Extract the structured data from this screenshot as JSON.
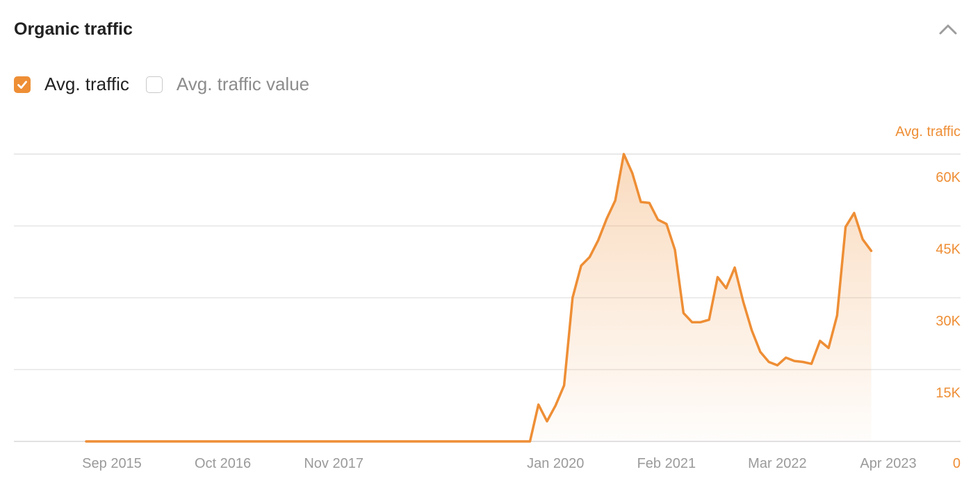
{
  "panel": {
    "title": "Organic traffic",
    "collapse_icon": "chevron-up-icon"
  },
  "legend": [
    {
      "label": "Avg. traffic",
      "checked": true,
      "color": "#ee8e35"
    },
    {
      "label": "Avg. traffic value",
      "checked": false,
      "color": "#c9c9c9"
    }
  ],
  "chart_data": {
    "type": "area",
    "series": [
      {
        "name": "Avg. traffic",
        "color": "#ee8e35",
        "points": [
          [
            "2015-06",
            0
          ],
          [
            "2016-06",
            0
          ],
          [
            "2017-06",
            0
          ],
          [
            "2018-06",
            0
          ],
          [
            "2019-06",
            0
          ],
          [
            "2019-10",
            0
          ],
          [
            "2019-11",
            7700
          ],
          [
            "2019-12",
            4200
          ],
          [
            "2020-01",
            7500
          ],
          [
            "2020-02",
            11700
          ],
          [
            "2020-03",
            30000
          ],
          [
            "2020-04",
            36700
          ],
          [
            "2020-05",
            38500
          ],
          [
            "2020-06",
            42000
          ],
          [
            "2020-07",
            46500
          ],
          [
            "2020-08",
            50300
          ],
          [
            "2020-09",
            60000
          ],
          [
            "2020-10",
            56000
          ],
          [
            "2020-11",
            50000
          ],
          [
            "2020-12",
            49800
          ],
          [
            "2021-01",
            46300
          ],
          [
            "2021-02",
            45400
          ],
          [
            "2021-03",
            40000
          ],
          [
            "2021-04",
            26800
          ],
          [
            "2021-05",
            24900
          ],
          [
            "2021-06",
            24900
          ],
          [
            "2021-07",
            25400
          ],
          [
            "2021-08",
            34300
          ],
          [
            "2021-09",
            32000
          ],
          [
            "2021-10",
            36300
          ],
          [
            "2021-11",
            29200
          ],
          [
            "2021-12",
            23200
          ],
          [
            "2022-01",
            18700
          ],
          [
            "2022-02",
            16600
          ],
          [
            "2022-03",
            15900
          ],
          [
            "2022-04",
            17500
          ],
          [
            "2022-05",
            16800
          ],
          [
            "2022-06",
            16600
          ],
          [
            "2022-07",
            16200
          ],
          [
            "2022-08",
            21000
          ],
          [
            "2022-09",
            19500
          ],
          [
            "2022-10",
            26300
          ],
          [
            "2022-11",
            44800
          ],
          [
            "2022-12",
            47700
          ],
          [
            "2023-01",
            42200
          ],
          [
            "2023-02",
            39800
          ]
        ]
      }
    ],
    "x_ticks": [
      "Sep 2015",
      "Oct 2016",
      "Nov 2017",
      "Jan 2020",
      "Feb 2021",
      "Mar 2022",
      "Apr 2023"
    ],
    "y_ticks": [
      "0",
      "15K",
      "30K",
      "45K",
      "60K"
    ],
    "y_values": [
      0,
      15000,
      30000,
      45000,
      60000
    ],
    "ylabel": "Avg. traffic",
    "ylim": [
      0,
      60000
    ],
    "grid": true,
    "y_axis_side": "right",
    "colors": {
      "accent": "#ee8e35",
      "grid": "#e6e6e6",
      "tick_text": "#9a9a9a"
    }
  }
}
